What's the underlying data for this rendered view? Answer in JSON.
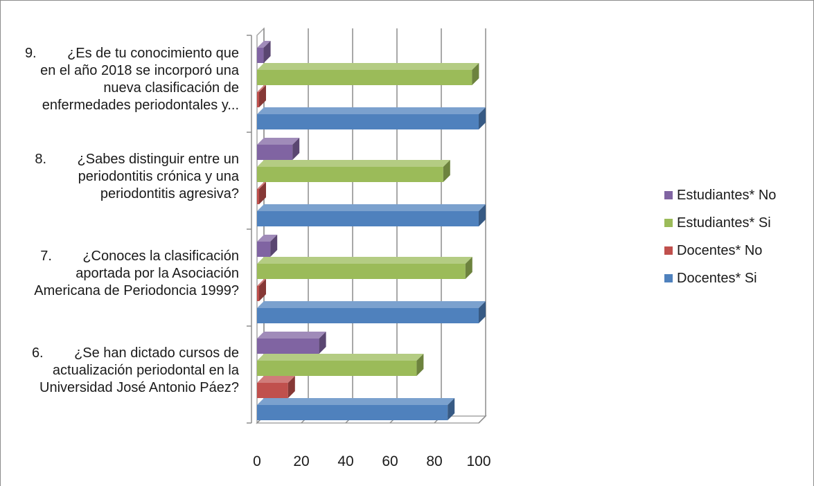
{
  "chart_data": {
    "type": "bar",
    "orientation": "horizontal",
    "categories": [
      "6.\t¿Se han dictado cursos de actualización periodontal en la Universidad José Antonio Páez?",
      "7.\t¿Conoces la clasificación aportada por la Asociación Americana de Periodoncia 1999?",
      "8.\t¿Sabes distinguir entre un periodontitis crónica y una periodontitis agresiva?",
      "9.\t¿Es de tu conocimiento que en el año 2018 se incorporó una nueva clasificación de enfermedades periodontales y..."
    ],
    "category_lines": [
      [
        "6.        ¿Se han dictado cursos de",
        "actualización periodontal en la",
        "Universidad José Antonio Páez?"
      ],
      [
        "7.        ¿Conoces la clasificación",
        "aportada por la Asociación",
        "Americana de Periodoncia 1999?"
      ],
      [
        "8.        ¿Sabes distinguir entre un",
        "periodontitis crónica y una",
        "periodontitis agresiva?"
      ],
      [
        "9.        ¿Es de tu conocimiento que",
        "en el año 2018 se incorporó una",
        "nueva clasificación de",
        "enfermedades periodontales y..."
      ]
    ],
    "series": [
      {
        "name": "Docentes* Si",
        "color": "#4f81bd",
        "values": [
          86,
          100,
          100,
          100
        ]
      },
      {
        "name": "Docentes* No",
        "color": "#c0504d",
        "values": [
          14,
          0,
          0,
          0
        ]
      },
      {
        "name": "Estudiantes* Si",
        "color": "#9bbb59",
        "values": [
          72,
          94,
          84,
          97
        ]
      },
      {
        "name": "Estudiantes* No",
        "color": "#8064a2",
        "values": [
          28,
          6,
          16,
          3
        ]
      }
    ],
    "xlim": [
      0,
      100
    ],
    "xticks": [
      "0",
      "20",
      "40",
      "60",
      "80",
      "100"
    ],
    "grid": true,
    "legend": "right",
    "legend_order": [
      "Estudiantes* No",
      "Estudiantes* Si",
      "Docentes* No",
      "Docentes* Si"
    ],
    "title": "",
    "xlabel": "",
    "ylabel": ""
  }
}
